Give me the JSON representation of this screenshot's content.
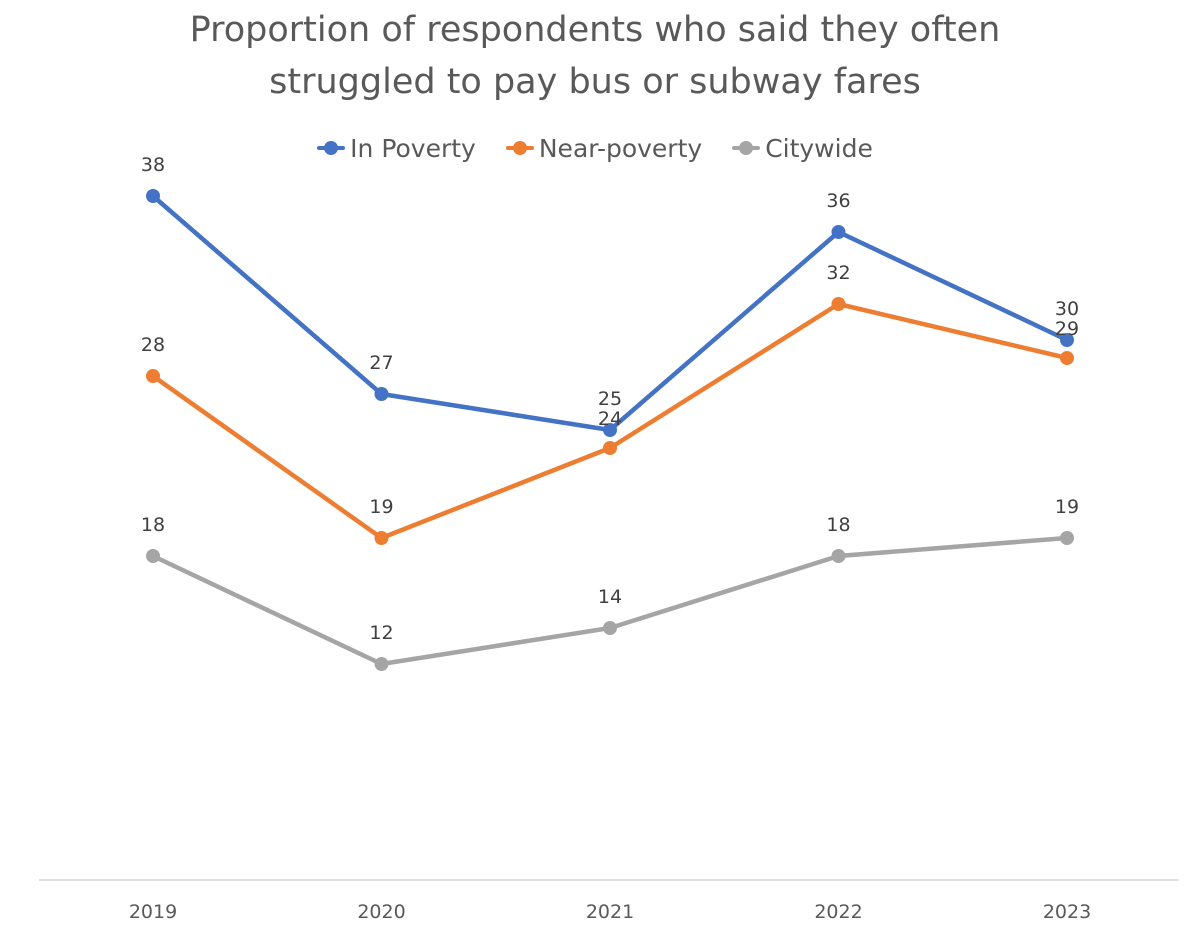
{
  "chart_data": {
    "type": "line",
    "title": "Proportion of respondents who said they often struggled to pay bus or subway fares",
    "title_lines": [
      "Proportion of respondents who said they often",
      "struggled to pay bus or subway fares"
    ],
    "categories": [
      "2019",
      "2020",
      "2021",
      "2022",
      "2023"
    ],
    "series": [
      {
        "name": "In Poverty",
        "values": [
          38,
          27,
          25,
          36,
          30
        ],
        "color": "#4472c4"
      },
      {
        "name": "Near-poverty",
        "values": [
          28,
          19,
          24,
          32,
          29
        ],
        "color": "#ed7d31"
      },
      {
        "name": "Citywide",
        "values": [
          18,
          12,
          14,
          18,
          19
        ],
        "color": "#a5a5a5"
      }
    ],
    "ylim": [
      0,
      40
    ],
    "data_labels": true,
    "legend_position": "top",
    "gridlines": false,
    "axis_color": "#d9d9d9"
  }
}
